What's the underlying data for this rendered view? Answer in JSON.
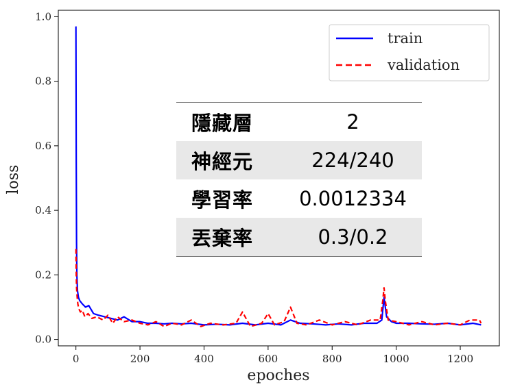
{
  "chart_data": {
    "type": "line",
    "xlabel": "epoches",
    "ylabel": "loss",
    "xlim": [
      -55,
      1322
    ],
    "ylim": [
      -0.02,
      1.02
    ],
    "xticks": [
      0,
      200,
      400,
      600,
      800,
      1000,
      1200
    ],
    "xtick_labels": [
      "0",
      "200",
      "400",
      "600",
      "800",
      "1000",
      "1200"
    ],
    "yticks": [
      0.0,
      0.2,
      0.4,
      0.6,
      0.8,
      1.0
    ],
    "ytick_labels": [
      "0.0",
      "0.2",
      "0.4",
      "0.6",
      "0.8",
      "1.0"
    ],
    "grid": false,
    "legend_position": "top-right",
    "series": [
      {
        "name": "train",
        "color": "#0000ff",
        "style": "solid",
        "x": [
          0,
          1,
          2,
          3,
          5,
          8,
          12,
          20,
          30,
          40,
          55,
          70,
          90,
          110,
          130,
          150,
          175,
          200,
          225,
          250,
          275,
          300,
          330,
          360,
          400,
          440,
          480,
          520,
          560,
          600,
          640,
          670,
          700,
          740,
          780,
          820,
          860,
          900,
          940,
          955,
          962,
          970,
          985,
          1000,
          1040,
          1080,
          1120,
          1160,
          1200,
          1240,
          1265
        ],
        "values": [
          0.97,
          0.55,
          0.3,
          0.2,
          0.15,
          0.13,
          0.12,
          0.11,
          0.1,
          0.105,
          0.08,
          0.075,
          0.07,
          0.065,
          0.06,
          0.07,
          0.055,
          0.055,
          0.05,
          0.05,
          0.048,
          0.05,
          0.048,
          0.05,
          0.045,
          0.047,
          0.045,
          0.05,
          0.045,
          0.05,
          0.045,
          0.06,
          0.05,
          0.048,
          0.045,
          0.048,
          0.045,
          0.05,
          0.05,
          0.06,
          0.13,
          0.07,
          0.055,
          0.05,
          0.05,
          0.048,
          0.047,
          0.05,
          0.045,
          0.05,
          0.045
        ]
      },
      {
        "name": "validation",
        "color": "#ff0000",
        "style": "dashed",
        "x": [
          0,
          1,
          2,
          4,
          6,
          9,
          14,
          20,
          28,
          38,
          50,
          65,
          85,
          100,
          115,
          130,
          150,
          175,
          200,
          225,
          250,
          275,
          300,
          330,
          360,
          390,
          420,
          460,
          500,
          520,
          545,
          580,
          600,
          620,
          650,
          670,
          690,
          720,
          760,
          800,
          840,
          880,
          920,
          950,
          958,
          962,
          966,
          975,
          1000,
          1040,
          1080,
          1120,
          1160,
          1200,
          1230,
          1260,
          1265
        ],
        "values": [
          0.28,
          0.2,
          0.16,
          0.13,
          0.11,
          0.095,
          0.085,
          0.09,
          0.07,
          0.08,
          0.065,
          0.07,
          0.06,
          0.075,
          0.05,
          0.07,
          0.055,
          0.06,
          0.05,
          0.045,
          0.055,
          0.04,
          0.05,
          0.045,
          0.06,
          0.04,
          0.05,
          0.045,
          0.05,
          0.085,
          0.04,
          0.05,
          0.08,
          0.045,
          0.055,
          0.1,
          0.05,
          0.045,
          0.06,
          0.045,
          0.055,
          0.045,
          0.06,
          0.06,
          0.12,
          0.16,
          0.12,
          0.06,
          0.055,
          0.045,
          0.055,
          0.045,
          0.05,
          0.045,
          0.06,
          0.06,
          0.05
        ]
      }
    ]
  },
  "table": {
    "rows": [
      {
        "key": "隱藏層",
        "value": "2",
        "shaded": false
      },
      {
        "key": "神經元",
        "value": "224/240",
        "shaded": true
      },
      {
        "key": "學習率",
        "value": "0.0012334",
        "shaded": false
      },
      {
        "key": "丟棄率",
        "value": "0.3/0.2",
        "shaded": true
      }
    ]
  }
}
